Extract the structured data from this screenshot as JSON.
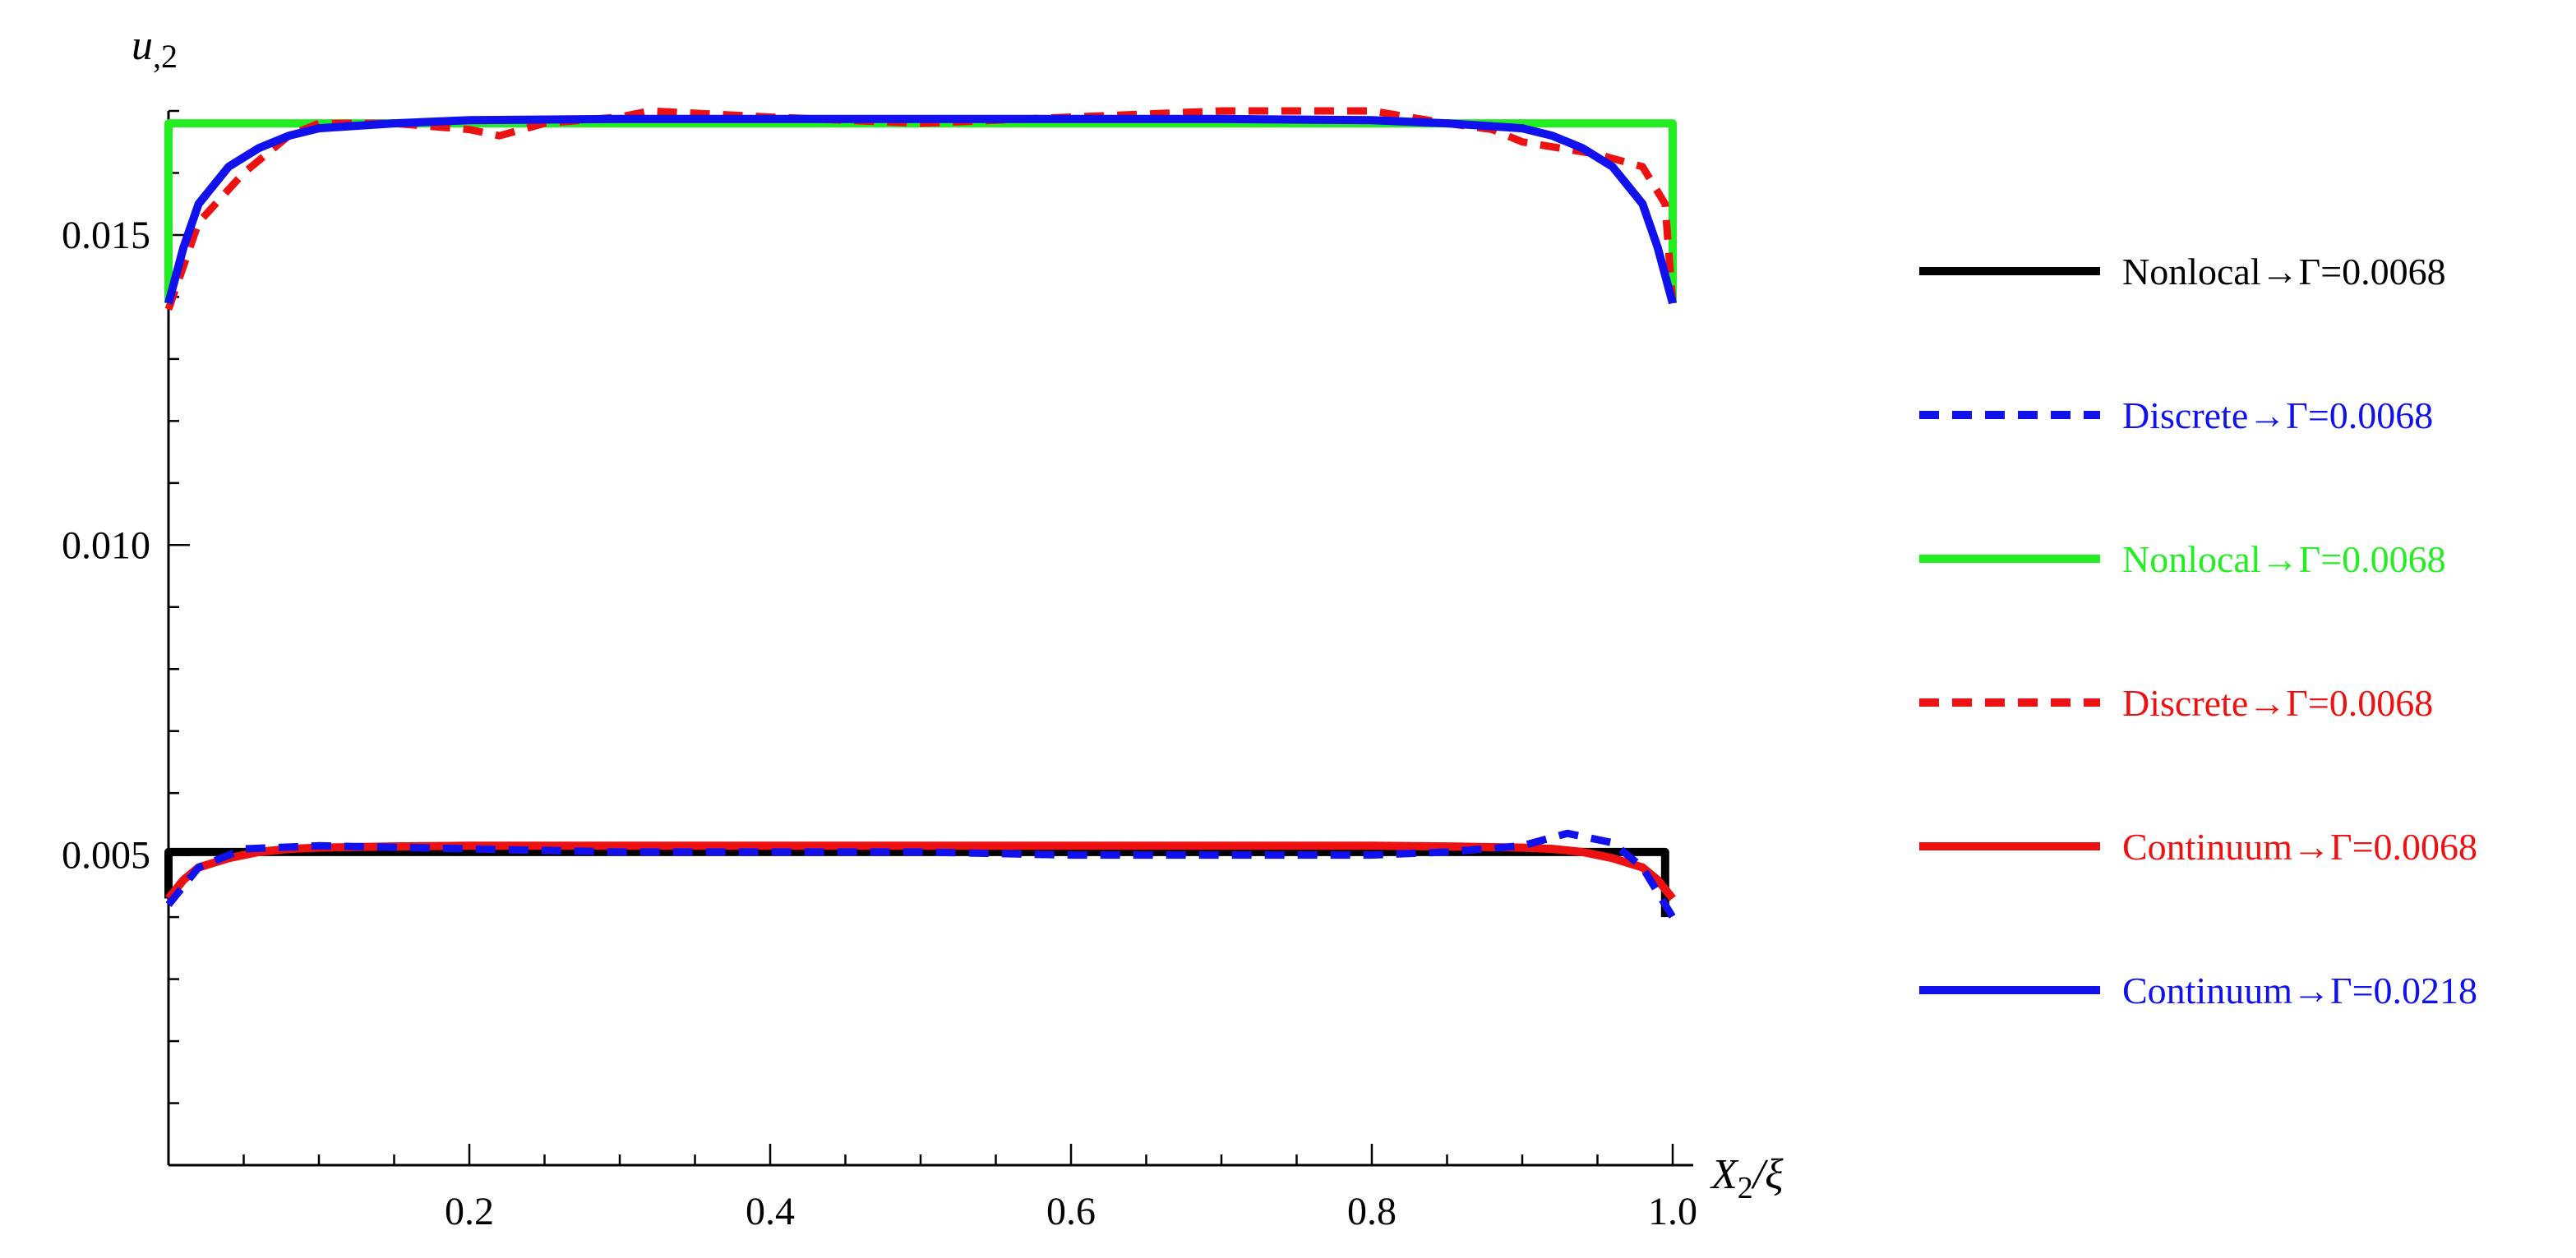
{
  "chart_data": {
    "type": "line",
    "title": "",
    "xlabel": "X",
    "xlabel_sub": "2",
    "xlabel_suffix": "/ξ",
    "ylabel": "u",
    "ylabel_sub": ",2",
    "xlim": [
      0,
      1.0
    ],
    "ylim": [
      0,
      0.017
    ],
    "x_ticks": [
      0.2,
      0.4,
      0.6,
      0.8,
      1.0
    ],
    "x_tick_labels": [
      "0.2",
      "0.4",
      "0.6",
      "0.8",
      "1.0"
    ],
    "y_ticks": [
      0.005,
      0.01,
      0.015
    ],
    "y_tick_labels": [
      "0.005",
      "0.010",
      "0.015"
    ],
    "grid": false,
    "legend_position": "right",
    "series": [
      {
        "name": "Nonlocal→Γ=0.0068",
        "color": "#000000",
        "style": "solid",
        "x": [
          0.0,
          0.0,
          0.5,
          0.995,
          0.995
        ],
        "y": [
          0.0043,
          0.00505,
          0.00505,
          0.00505,
          0.004
        ]
      },
      {
        "name": "Discrete→Γ=0.0068",
        "color": "#1111ee",
        "style": "dashed",
        "x": [
          0.0,
          0.02,
          0.05,
          0.1,
          0.2,
          0.3,
          0.4,
          0.5,
          0.6,
          0.7,
          0.8,
          0.85,
          0.9,
          0.93,
          0.96,
          0.98,
          1.0
        ],
        "y": [
          0.0042,
          0.0048,
          0.0051,
          0.00515,
          0.0051,
          0.00505,
          0.00505,
          0.00505,
          0.005,
          0.005,
          0.005,
          0.00505,
          0.00515,
          0.00535,
          0.0052,
          0.0048,
          0.004
        ]
      },
      {
        "name": "Nonlocal→Γ=0.0068",
        "color": "#22ee22",
        "style": "solid",
        "x": [
          0.0,
          0.0,
          0.5,
          1.0,
          1.0
        ],
        "y": [
          0.0139,
          0.0168,
          0.0168,
          0.0168,
          0.0139
        ]
      },
      {
        "name": "Discrete→Γ=0.0068",
        "color": "#ee1111",
        "style": "dashed",
        "x": [
          0.0,
          0.02,
          0.05,
          0.08,
          0.1,
          0.15,
          0.2,
          0.22,
          0.25,
          0.3,
          0.32,
          0.4,
          0.5,
          0.6,
          0.7,
          0.75,
          0.8,
          0.85,
          0.88,
          0.9,
          0.95,
          0.98,
          0.995,
          1.0
        ],
        "y": [
          0.0138,
          0.0152,
          0.016,
          0.0166,
          0.0168,
          0.0168,
          0.0167,
          0.0166,
          0.0168,
          0.0169,
          0.017,
          0.0169,
          0.0168,
          0.0169,
          0.017,
          0.017,
          0.017,
          0.0168,
          0.0167,
          0.0165,
          0.0163,
          0.0161,
          0.0155,
          0.0139
        ]
      },
      {
        "name": "Continuum→Γ=0.0068",
        "color": "#ee1111",
        "style": "solid",
        "x": [
          0.0,
          0.01,
          0.02,
          0.04,
          0.06,
          0.08,
          0.1,
          0.15,
          0.2,
          0.3,
          0.4,
          0.5,
          0.6,
          0.7,
          0.8,
          0.85,
          0.9,
          0.92,
          0.94,
          0.96,
          0.98,
          0.99,
          1.0
        ],
        "y": [
          0.0043,
          0.0046,
          0.0048,
          0.00495,
          0.00505,
          0.0051,
          0.00512,
          0.00514,
          0.00515,
          0.00515,
          0.00515,
          0.00515,
          0.00515,
          0.00515,
          0.00515,
          0.00514,
          0.00512,
          0.0051,
          0.00505,
          0.00495,
          0.0048,
          0.0046,
          0.0043
        ]
      },
      {
        "name": "Continuum→Γ=0.0218",
        "color": "#1111ee",
        "style": "solid",
        "x": [
          0.0,
          0.01,
          0.02,
          0.04,
          0.06,
          0.08,
          0.1,
          0.15,
          0.2,
          0.3,
          0.4,
          0.5,
          0.6,
          0.7,
          0.8,
          0.85,
          0.9,
          0.92,
          0.94,
          0.96,
          0.98,
          0.99,
          1.0
        ],
        "y": [
          0.0139,
          0.0148,
          0.0155,
          0.0161,
          0.0164,
          0.0166,
          0.01672,
          0.0168,
          0.01685,
          0.01687,
          0.01687,
          0.01687,
          0.01687,
          0.01687,
          0.01685,
          0.0168,
          0.01672,
          0.0166,
          0.0164,
          0.0161,
          0.0155,
          0.0148,
          0.0139
        ]
      }
    ]
  }
}
